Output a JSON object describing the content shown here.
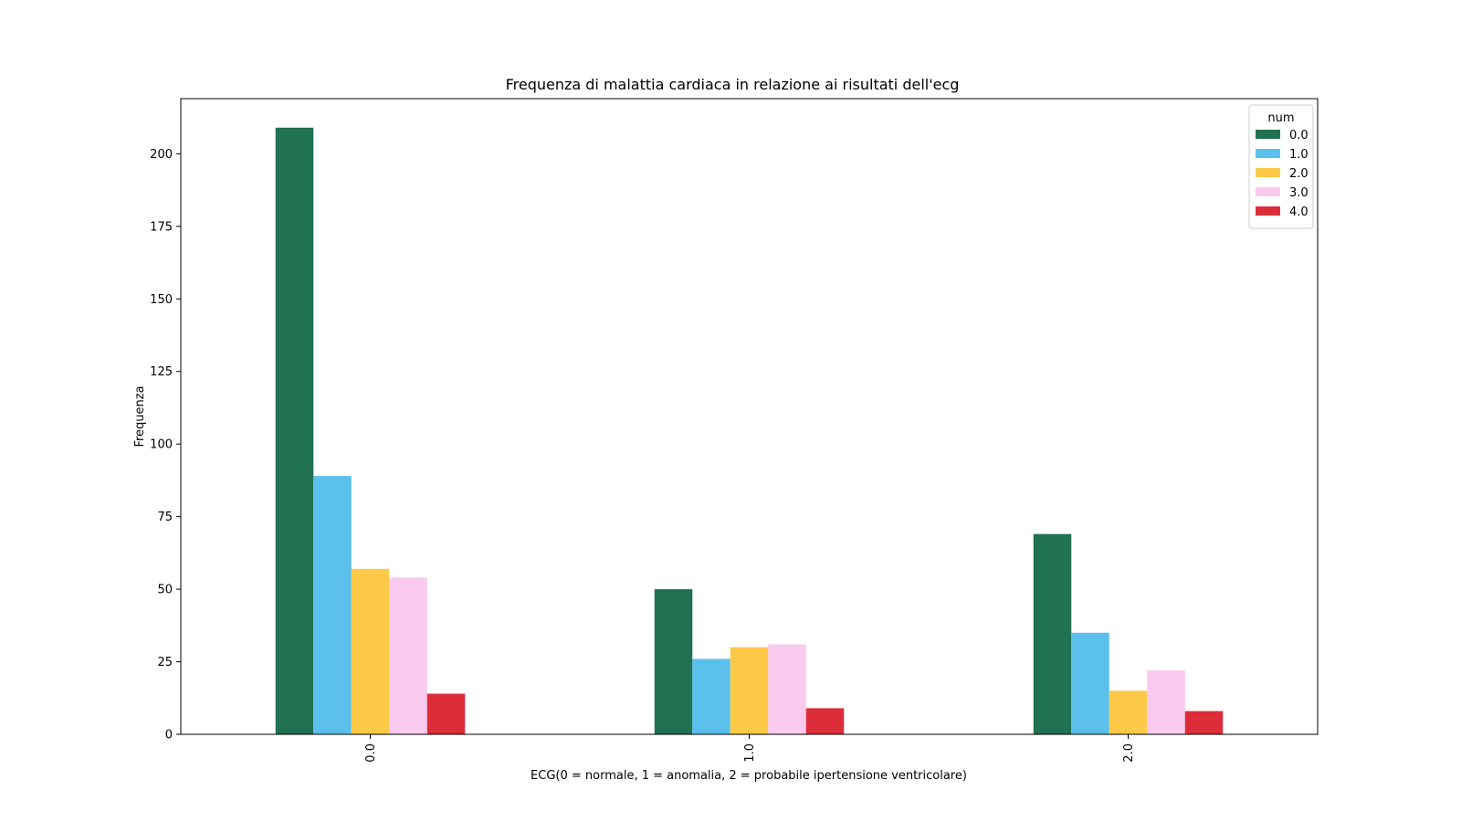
{
  "chart_data": {
    "type": "bar",
    "title": "Frequenza di malattia cardiaca in relazione ai risultati dell'ecg",
    "xlabel": "ECG(0 = normale, 1 = anomalia, 2 = probabile ipertensione ventricolare)",
    "ylabel": "Frequenza",
    "categories": [
      "0.0",
      "1.0",
      "2.0"
    ],
    "ylim": [
      0,
      219
    ],
    "yticks": [
      0,
      25,
      50,
      75,
      100,
      125,
      150,
      175,
      200
    ],
    "grid": false,
    "legend": {
      "title": "num",
      "placement": "top-right"
    },
    "series": [
      {
        "name": "0.0",
        "color": "#217153",
        "values": [
          209,
          50,
          69
        ]
      },
      {
        "name": "1.0",
        "color": "#5bc0eb",
        "values": [
          89,
          26,
          35
        ]
      },
      {
        "name": "2.0",
        "color": "#fbc947",
        "values": [
          57,
          30,
          15
        ]
      },
      {
        "name": "3.0",
        "color": "#f9c9ee",
        "values": [
          54,
          31,
          22
        ]
      },
      {
        "name": "4.0",
        "color": "#dc2d3a",
        "values": [
          14,
          9,
          8
        ]
      }
    ]
  }
}
